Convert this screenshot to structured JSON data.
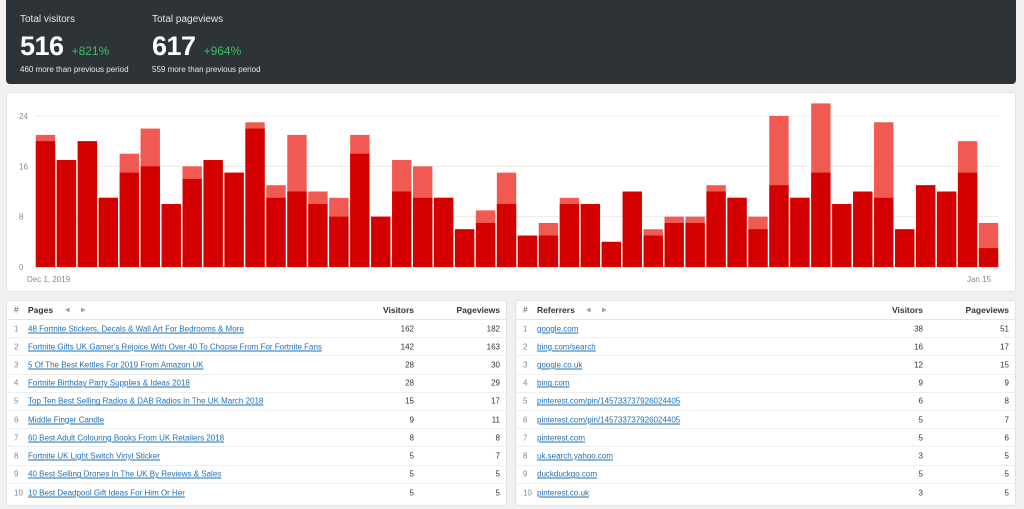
{
  "summary": {
    "visitors": {
      "label": "Total visitors",
      "value": "516",
      "change": "+821%",
      "sub": "460 more than previous period"
    },
    "pageviews": {
      "label": "Total pageviews",
      "value": "617",
      "change": "+964%",
      "sub": "559 more than previous period"
    }
  },
  "colors": {
    "visitors": "#d40000",
    "pageviews": "#f05a52",
    "positive": "#36c35a",
    "header_bg": "#2e3338",
    "link": "#1f6fb2"
  },
  "chart_data": {
    "type": "bar",
    "x_start_label": "Dec 1, 2019",
    "x_end_label": "Jan 15",
    "y_ticks": [
      0,
      8,
      16,
      24
    ],
    "ylim": [
      0,
      24
    ],
    "series": [
      {
        "name": "Visitors",
        "values": [
          20,
          17,
          20,
          11,
          15,
          16,
          10,
          14,
          17,
          15,
          22,
          11,
          12,
          10,
          8,
          18,
          8,
          12,
          11,
          11,
          6,
          7,
          10,
          5,
          5,
          10,
          10,
          4,
          12,
          5,
          7,
          7,
          12,
          11,
          6,
          13,
          11,
          15,
          10,
          12,
          11,
          6,
          13,
          12,
          15,
          3
        ]
      },
      {
        "name": "Pageviews",
        "values": [
          21,
          17,
          20,
          11,
          18,
          22,
          10,
          16,
          17,
          15,
          23,
          13,
          21,
          12,
          11,
          21,
          8,
          17,
          16,
          11,
          6,
          9,
          15,
          5,
          7,
          11,
          10,
          4,
          12,
          6,
          8,
          8,
          13,
          11,
          8,
          24,
          11,
          26,
          10,
          12,
          23,
          6,
          13,
          12,
          20,
          7
        ]
      }
    ]
  },
  "pages": {
    "col_index": "#",
    "title": "Pages",
    "col_visitors": "Visitors",
    "col_pageviews": "Pageviews",
    "rows": [
      {
        "idx": "1",
        "label": "48 Fortnite Stickers, Decals & Wall Art For Bedrooms & More",
        "visitors": "162",
        "pageviews": "182"
      },
      {
        "idx": "2",
        "label": "Fortnite Gifts UK Gamer's Rejoice With Over 40 To Choose From For Fortnite Fans",
        "visitors": "142",
        "pageviews": "163"
      },
      {
        "idx": "3",
        "label": "5 Of The Best Kettles For 2019 From Amazon UK",
        "visitors": "28",
        "pageviews": "30"
      },
      {
        "idx": "4",
        "label": "Fortnite Birthday Party Supplies & Ideas 2018",
        "visitors": "28",
        "pageviews": "29"
      },
      {
        "idx": "5",
        "label": "Top Ten Best Selling Radios & DAB Radios In The UK March 2018",
        "visitors": "15",
        "pageviews": "17"
      },
      {
        "idx": "6",
        "label": "Middle Finger Candle",
        "visitors": "9",
        "pageviews": "11"
      },
      {
        "idx": "7",
        "label": "60 Best Adult Colouring Books From UK Retailers 2018",
        "visitors": "8",
        "pageviews": "8"
      },
      {
        "idx": "8",
        "label": "Fortnite UK Light Switch Vinyl Sticker",
        "visitors": "5",
        "pageviews": "7"
      },
      {
        "idx": "9",
        "label": "40 Best Selling Drones In The UK By Reviews & Sales",
        "visitors": "5",
        "pageviews": "5"
      },
      {
        "idx": "10",
        "label": "10 Best Deadpool Gift Ideas For Him Or Her",
        "visitors": "5",
        "pageviews": "5"
      }
    ]
  },
  "referrers": {
    "col_index": "#",
    "title": "Referrers",
    "col_visitors": "Visitors",
    "col_pageviews": "Pageviews",
    "rows": [
      {
        "idx": "1",
        "label": "google.com",
        "visitors": "38",
        "pageviews": "51"
      },
      {
        "idx": "2",
        "label": "bing.com/search",
        "visitors": "16",
        "pageviews": "17"
      },
      {
        "idx": "3",
        "label": "google.co.uk",
        "visitors": "12",
        "pageviews": "15"
      },
      {
        "idx": "4",
        "label": "bing.com",
        "visitors": "9",
        "pageviews": "9"
      },
      {
        "idx": "5",
        "label": "pinterest.com/pin/145733737926024405",
        "visitors": "6",
        "pageviews": "8"
      },
      {
        "idx": "6",
        "label": "pinterest.com/pin/145733737926024405",
        "visitors": "5",
        "pageviews": "7"
      },
      {
        "idx": "7",
        "label": "pinterest.com",
        "visitors": "5",
        "pageviews": "6"
      },
      {
        "idx": "8",
        "label": "uk.search.yahoo.com",
        "visitors": "3",
        "pageviews": "5"
      },
      {
        "idx": "9",
        "label": "duckduckgo.com",
        "visitors": "5",
        "pageviews": "5"
      },
      {
        "idx": "10",
        "label": "pinterest.co.uk",
        "visitors": "3",
        "pageviews": "5"
      }
    ]
  },
  "icons": {
    "prev": "caret-left-icon",
    "next": "caret-right-icon"
  }
}
